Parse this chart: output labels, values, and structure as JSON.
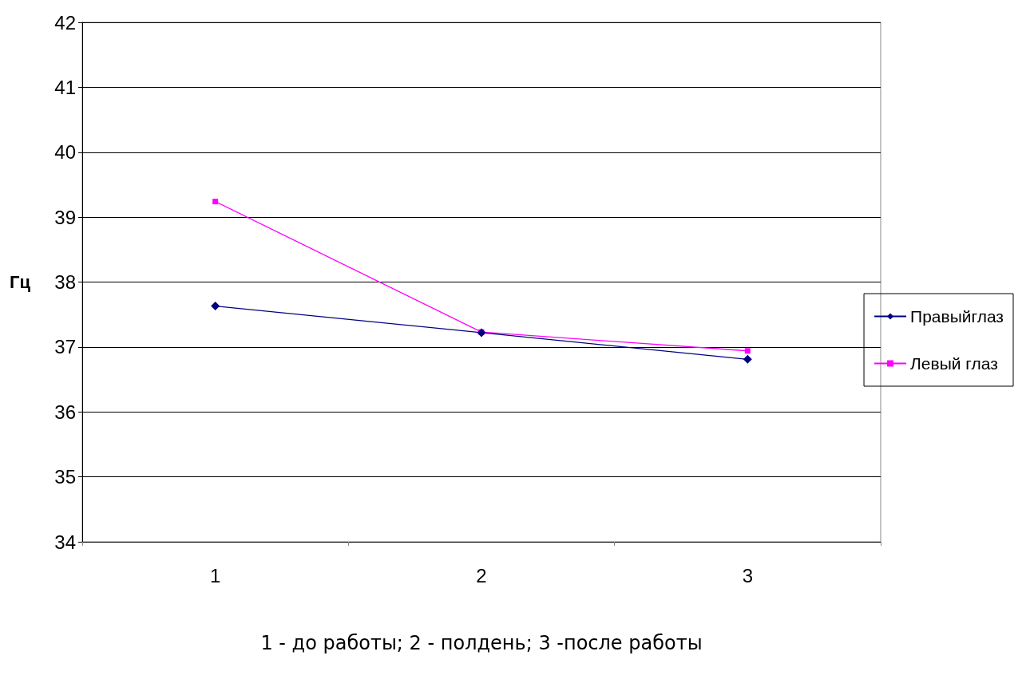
{
  "chart_data": {
    "type": "line",
    "xlabel": "1 - до работы; 2 - полдень; 3 -после работы",
    "ylabel": "Гц",
    "categories": [
      "1",
      "2",
      "3"
    ],
    "series": [
      {
        "name": "Правыйглаз",
        "color": "#000080",
        "marker": "diamond",
        "values": [
          37.63,
          37.22,
          36.81
        ]
      },
      {
        "name": "Левый глаз",
        "color": "#ff00ff",
        "marker": "square",
        "values": [
          39.24,
          37.23,
          36.94
        ]
      }
    ],
    "ylim": [
      34,
      42
    ],
    "yticks": [
      34,
      35,
      36,
      37,
      38,
      39,
      40,
      41,
      42
    ],
    "grid": "y",
    "legend": "right",
    "line_style": "solid"
  }
}
